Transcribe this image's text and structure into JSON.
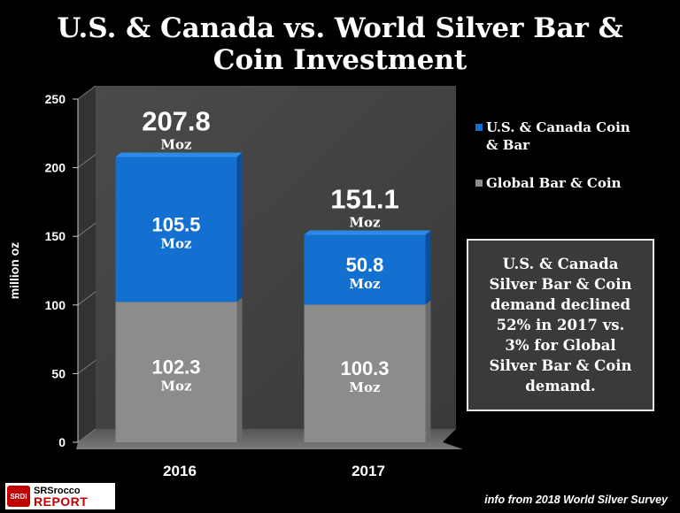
{
  "chart_data": {
    "type": "bar",
    "stacked": true,
    "title": "U.S. & Canada vs. World Silver Bar & Coin Investment",
    "title_lines": [
      "U.S. & Canada vs. World Silver Bar &",
      "Coin Investment"
    ],
    "xlabel": "",
    "ylabel": "million oz",
    "ylim": [
      0,
      250
    ],
    "yticks": [
      0,
      50,
      100,
      150,
      200,
      250
    ],
    "categories": [
      "2016",
      "2017"
    ],
    "unit": "Moz",
    "series": [
      {
        "name": "Global Bar & Coin",
        "values": [
          102.3,
          100.3
        ],
        "labels": [
          "102.3",
          "100.3"
        ],
        "color": "#8c8c8c"
      },
      {
        "name": "U.S. & Canada Coin & Bar",
        "values": [
          105.5,
          50.8
        ],
        "labels": [
          "105.5",
          "50.8"
        ],
        "color": "#1470d0"
      }
    ],
    "totals": [
      207.8,
      151.1
    ],
    "total_labels": [
      "207.8",
      "151.1"
    ],
    "legend": [
      {
        "lines": [
          "U.S. & Canada Coin",
          "& Bar"
        ],
        "color": "#1470d0"
      },
      {
        "lines": [
          "Global Bar & Coin"
        ],
        "color": "#8c8c8c"
      }
    ],
    "annotation_lines": [
      "U.S. & Canada",
      "Silver Bar & Coin",
      "demand declined",
      "52% in 2017 vs.",
      "3% for Global",
      "Silver Bar & Coin",
      "demand."
    ],
    "source": "info from 2018 World Silver Survey"
  },
  "logo": {
    "badge": "SRDI",
    "top": "SRSrocco",
    "bottom": "REPORT"
  },
  "colors": {
    "background": "#000000",
    "wall": "#444444",
    "floor": "#6e6e6e",
    "accent_blue": "#1470d0",
    "accent_gray": "#8c8c8c"
  }
}
